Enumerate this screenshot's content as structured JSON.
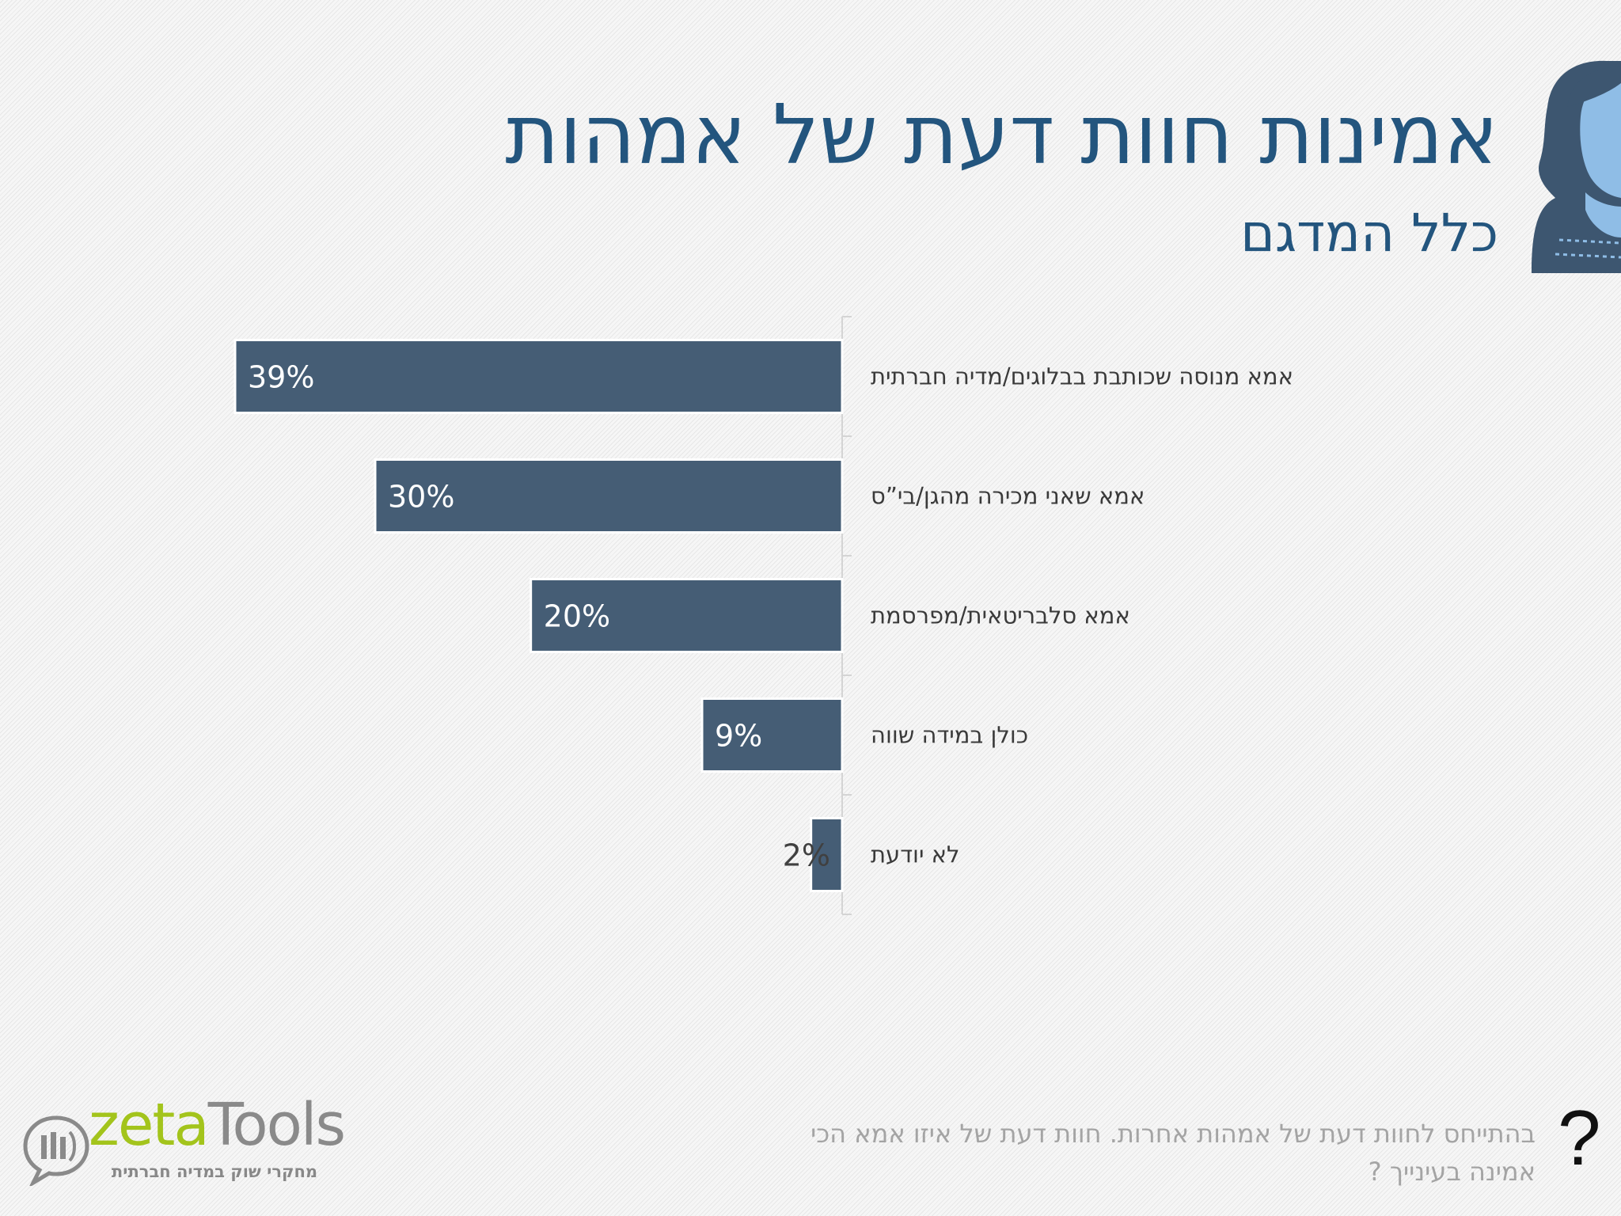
{
  "header": {
    "title": "אמינות חוות דעת של אמהות",
    "subtitle": "כלל המדגם"
  },
  "chart_data": {
    "type": "bar",
    "orientation": "horizontal",
    "categories": [
      "אמא מנוסה שכותבת בבלוגים/מדיה חברתית",
      "אמא שאני מכירה מהגן/בי”ס",
      "אמא סלבריטאית/מפרסמת",
      "כולן במידה שווה",
      "לא יודעת"
    ],
    "values": [
      39,
      30,
      20,
      9,
      2
    ],
    "value_labels": [
      "39%",
      "30%",
      "20%",
      "9%",
      "2%"
    ],
    "unit": "%",
    "bar_color": "#455d75",
    "grid": false
  },
  "footer": {
    "question_line1": "בהתייחס לחוות דעת של אמהות אחרות. חוות דעת של איזו אמא הכי",
    "question_line2": "אמינה בעינייך ?",
    "question_mark": "?"
  },
  "logo": {
    "word_part1": "zeta",
    "word_part2": "Tools",
    "tagline": "מחקרי שוק במדיה חברתית"
  },
  "colors": {
    "title": "#23557e",
    "bar": "#455d75",
    "avatar_light": "#8fbde6",
    "avatar_dark": "#3d5670",
    "logo_green": "#a3c41c"
  }
}
